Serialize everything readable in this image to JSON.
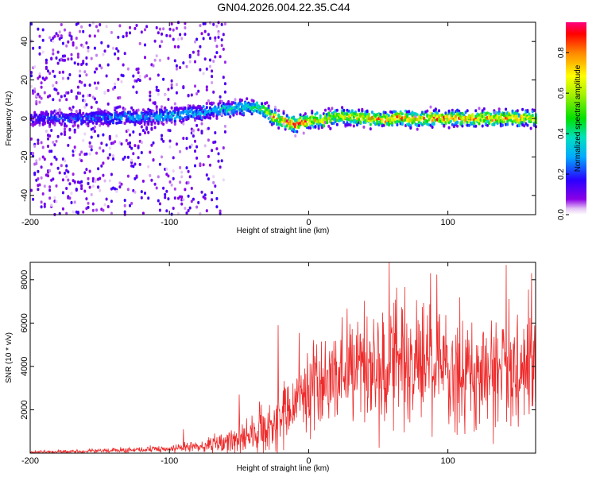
{
  "title": "GN04.2026.004.22.35.C44",
  "chart_data": [
    {
      "type": "heatmap",
      "xlabel": "Height of straight line (km)",
      "ylabel": "Frequency (Hz)",
      "xlim": [
        -200,
        163
      ],
      "ylim": [
        -50,
        50
      ],
      "x_ticks": [
        -200,
        -100,
        0,
        100
      ],
      "y_ticks": [
        -40,
        -20,
        0,
        20,
        40
      ],
      "colorbar": {
        "label": "Normalized spectral amplitude",
        "range": [
          0.0,
          0.95
        ],
        "ticks": [
          0.0,
          0.2,
          0.4,
          0.6,
          0.8
        ],
        "tick_labels": [
          "0.0",
          "0.2",
          "0.4",
          "0.6",
          "0.8"
        ]
      },
      "ridge": {
        "x": [
          -200,
          -170,
          -140,
          -110,
          -80,
          -60,
          -45,
          -35,
          -30,
          -25,
          -20,
          -15,
          -10,
          -5,
          0,
          10,
          20,
          40,
          60,
          80,
          100,
          120,
          140,
          163
        ],
        "freq": [
          0,
          0,
          0.5,
          1,
          3,
          5,
          6,
          5,
          3,
          0,
          -1,
          -2,
          -3,
          -2,
          -1,
          -1,
          1,
          0,
          0,
          0,
          0,
          0,
          0,
          0
        ],
        "peak_amplitude": [
          0.2,
          0.25,
          0.3,
          0.35,
          0.35,
          0.4,
          0.4,
          0.5,
          0.7,
          0.8,
          0.85,
          0.9,
          0.9,
          0.85,
          0.8,
          0.75,
          0.7,
          0.75,
          0.85,
          0.85,
          0.85,
          0.8,
          0.85,
          0.7
        ]
      }
    },
    {
      "type": "line",
      "xlabel": "Height of straight line (km)",
      "ylabel": "SNR (10 * v/v)",
      "xlim": [
        -200,
        163
      ],
      "ylim": [
        0,
        8800
      ],
      "x_ticks": [
        -200,
        -100,
        0,
        100
      ],
      "y_ticks": [
        2000,
        4000,
        6000,
        8000
      ],
      "series": [
        {
          "color": "#ee2b2b",
          "envelope_x": [
            -200,
            -150,
            -100,
            -80,
            -60,
            -50,
            -40,
            -30,
            -25,
            -20,
            -15,
            -10,
            -5,
            0,
            10,
            20,
            30,
            40,
            60,
            80,
            100,
            120,
            140,
            163
          ],
          "envelope_mean": [
            50,
            100,
            200,
            300,
            500,
            800,
            900,
            1100,
            1300,
            1600,
            2000,
            2400,
            2700,
            3000,
            3300,
            3600,
            3900,
            4100,
            4300,
            4100,
            3900,
            3800,
            3800,
            3700
          ],
          "envelope_spread": [
            60,
            80,
            120,
            200,
            400,
            600,
            700,
            900,
            1100,
            1200,
            1300,
            1400,
            1500,
            1600,
            1800,
            2000,
            2200,
            2300,
            2400,
            2200,
            2100,
            2100,
            2100,
            2200
          ],
          "peaks": [
            {
              "x": -90,
              "y": 1100
            },
            {
              "x": -50,
              "y": 2700
            },
            {
              "x": -22,
              "y": 5900
            },
            {
              "x": 58,
              "y": 8800
            },
            {
              "x": 160,
              "y": 8300
            }
          ]
        }
      ]
    }
  ]
}
